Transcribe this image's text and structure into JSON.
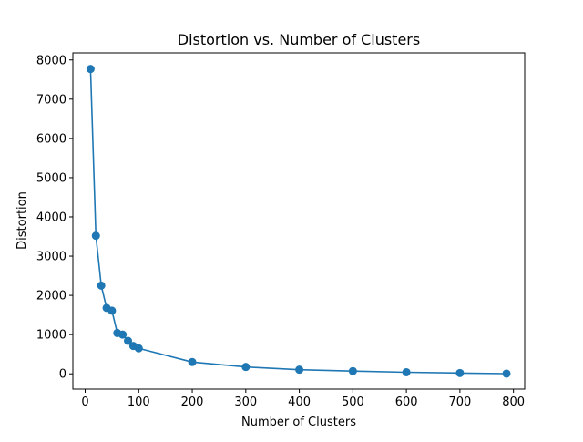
{
  "chart_data": {
    "type": "line",
    "title": "Distortion vs. Number of Clusters",
    "xlabel": "Number of Clusters",
    "ylabel": "Distortion",
    "xlim": [
      -23,
      821
    ],
    "ylim": [
      -390,
      8180
    ],
    "xticks": [
      0,
      100,
      200,
      300,
      400,
      500,
      600,
      700,
      800
    ],
    "yticks": [
      0,
      1000,
      2000,
      3000,
      4000,
      5000,
      6000,
      7000,
      8000
    ],
    "grid": false,
    "color": "#1f77b4",
    "series": [
      {
        "name": "",
        "markers": true,
        "x": [
          10,
          20,
          30,
          40,
          50,
          60,
          70,
          80,
          90,
          100,
          200,
          300,
          400,
          500,
          600,
          700,
          787
        ],
        "y": [
          7770,
          3520,
          2250,
          1680,
          1610,
          1040,
          1000,
          840,
          710,
          650,
          300,
          175,
          105,
          70,
          40,
          20,
          5
        ]
      }
    ]
  }
}
